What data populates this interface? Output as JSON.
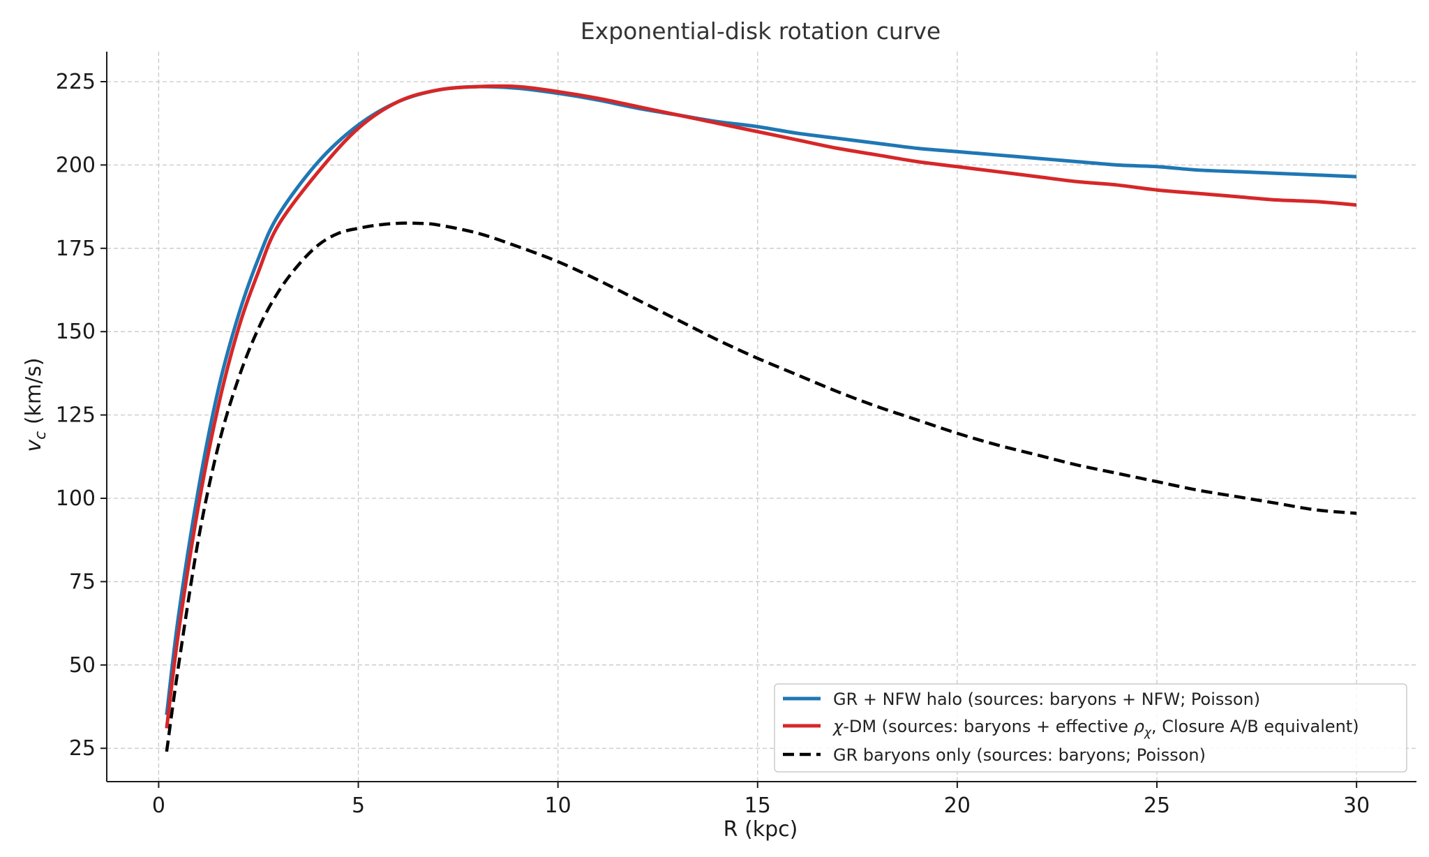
{
  "chart_data": {
    "type": "line",
    "title": "Exponential-disk rotation curve",
    "xlabel": "R (kpc)",
    "ylabel_symbol": "v",
    "ylabel_sub": "c",
    "ylabel_unit": " (km/s)",
    "xlim": [
      -1.3,
      31.5
    ],
    "ylim": [
      15,
      234
    ],
    "xticks": [
      0,
      5,
      10,
      15,
      20,
      25,
      30
    ],
    "yticks": [
      25,
      50,
      75,
      100,
      125,
      150,
      175,
      200,
      225
    ],
    "grid": true,
    "legend_position": "lower-right",
    "series": [
      {
        "name": "GR + NFW halo (sources: baryons + NFW; Poisson)",
        "color": "#1f77b4",
        "style": "solid",
        "x": [
          0.2,
          0.5,
          1,
          1.5,
          2,
          2.5,
          3,
          4,
          5,
          6,
          7,
          8,
          9,
          10,
          11,
          12,
          13,
          14,
          15,
          16,
          17,
          18,
          19,
          20,
          21,
          22,
          23,
          24,
          25,
          26,
          27,
          28,
          29,
          30
        ],
        "y": [
          35,
          65,
          103,
          133,
          155,
          172,
          185,
          201,
          212,
          219,
          222.5,
          223.5,
          223,
          221.5,
          219.5,
          217,
          215,
          213,
          211.5,
          209.5,
          208,
          206.5,
          205,
          204,
          203,
          202,
          201,
          200,
          199.5,
          198.5,
          198,
          197.5,
          197,
          196.5
        ]
      },
      {
        "name": "χ-DM (sources: baryons + effective ρχ, Closure A/B equivalent)",
        "legend_latin": "-DM (sources: baryons + effective ",
        "legend_greek1": "χ",
        "legend_rho": "ρ",
        "legend_sub": "χ",
        "legend_tail": ", Closure A/B equivalent)",
        "color": "#d62728",
        "style": "solid",
        "x": [
          0.2,
          0.5,
          1,
          1.5,
          2,
          2.5,
          3,
          4,
          5,
          6,
          7,
          8,
          9,
          10,
          11,
          12,
          13,
          14,
          15,
          16,
          17,
          18,
          19,
          20,
          21,
          22,
          23,
          24,
          25,
          26,
          27,
          28,
          29,
          30
        ],
        "y": [
          31,
          60,
          98,
          128,
          151,
          168,
          182,
          198,
          211,
          219,
          222.5,
          223.5,
          223.5,
          222,
          220,
          217.5,
          215,
          212.5,
          210,
          207.5,
          205,
          203,
          201,
          199.5,
          198,
          196.5,
          195,
          194,
          192.5,
          191.5,
          190.5,
          189.5,
          189,
          188
        ]
      },
      {
        "name": "GR baryons only (sources: baryons; Poisson)",
        "color": "#000000",
        "style": "dashed",
        "x": [
          0.2,
          0.5,
          1,
          1.5,
          2,
          2.5,
          3,
          3.5,
          4,
          4.5,
          5,
          5.5,
          6,
          6.5,
          7,
          8,
          9,
          10,
          11,
          12,
          13,
          14,
          15,
          16,
          17,
          18,
          19,
          20,
          21,
          22,
          23,
          24,
          25,
          26,
          27,
          28,
          29,
          30
        ],
        "y": [
          24,
          50,
          88,
          116,
          136,
          151,
          162,
          170,
          176,
          179.5,
          181,
          182,
          182.5,
          182.5,
          182,
          179.5,
          175.5,
          171,
          165.5,
          159.5,
          153.5,
          147.5,
          142,
          137,
          132,
          127.5,
          123.5,
          119.5,
          116,
          113,
          110,
          107.5,
          105,
          102.5,
          100.5,
          98.5,
          96.5,
          95.5
        ]
      }
    ]
  }
}
